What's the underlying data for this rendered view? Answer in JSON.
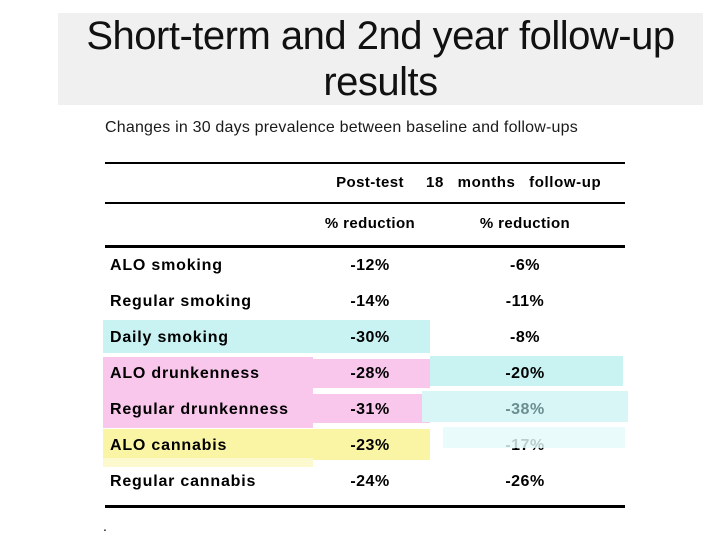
{
  "slide": {
    "title_line1": "Short-term and 2nd year follow-up",
    "title_line2": "results"
  },
  "table": {
    "caption": "Changes in 30 days prevalence between baseline and follow-ups",
    "col_headers": {
      "post_test": "Post-test",
      "followup": "18  months follow-up"
    },
    "sub_headers": {
      "post_test": "% reduction",
      "followup": "% reduction"
    },
    "rows": [
      {
        "label": "ALO smoking",
        "post_test": "-12%",
        "followup": "-6%"
      },
      {
        "label": "Regular smoking",
        "post_test": "-14%",
        "followup": "-11%"
      },
      {
        "label": "Daily smoking",
        "post_test": "-30%",
        "followup": "-8%"
      },
      {
        "label": "ALO drunkenness",
        "post_test": "-28%",
        "followup": "-20%"
      },
      {
        "label": "Regular drunkenness",
        "post_test": "-31%",
        "followup": "-38%"
      },
      {
        "label": "ALO cannabis",
        "post_test": "-23%",
        "followup": "-17%"
      },
      {
        "label": "Regular cannabis",
        "post_test": "-24%",
        "followup": "-26%"
      }
    ],
    "footnote": "."
  },
  "colors": {
    "title_bg": "#f0f0f0",
    "cyan": "#c9f2f3",
    "cyan_light": "#d8f6f6",
    "pink": "#f9c6ec",
    "yellow": "#faf5a4",
    "pale_yellow": "#fcf9cf",
    "pale_cyan": "#e5fafa",
    "muted_value_text": "#6b8e8e"
  }
}
